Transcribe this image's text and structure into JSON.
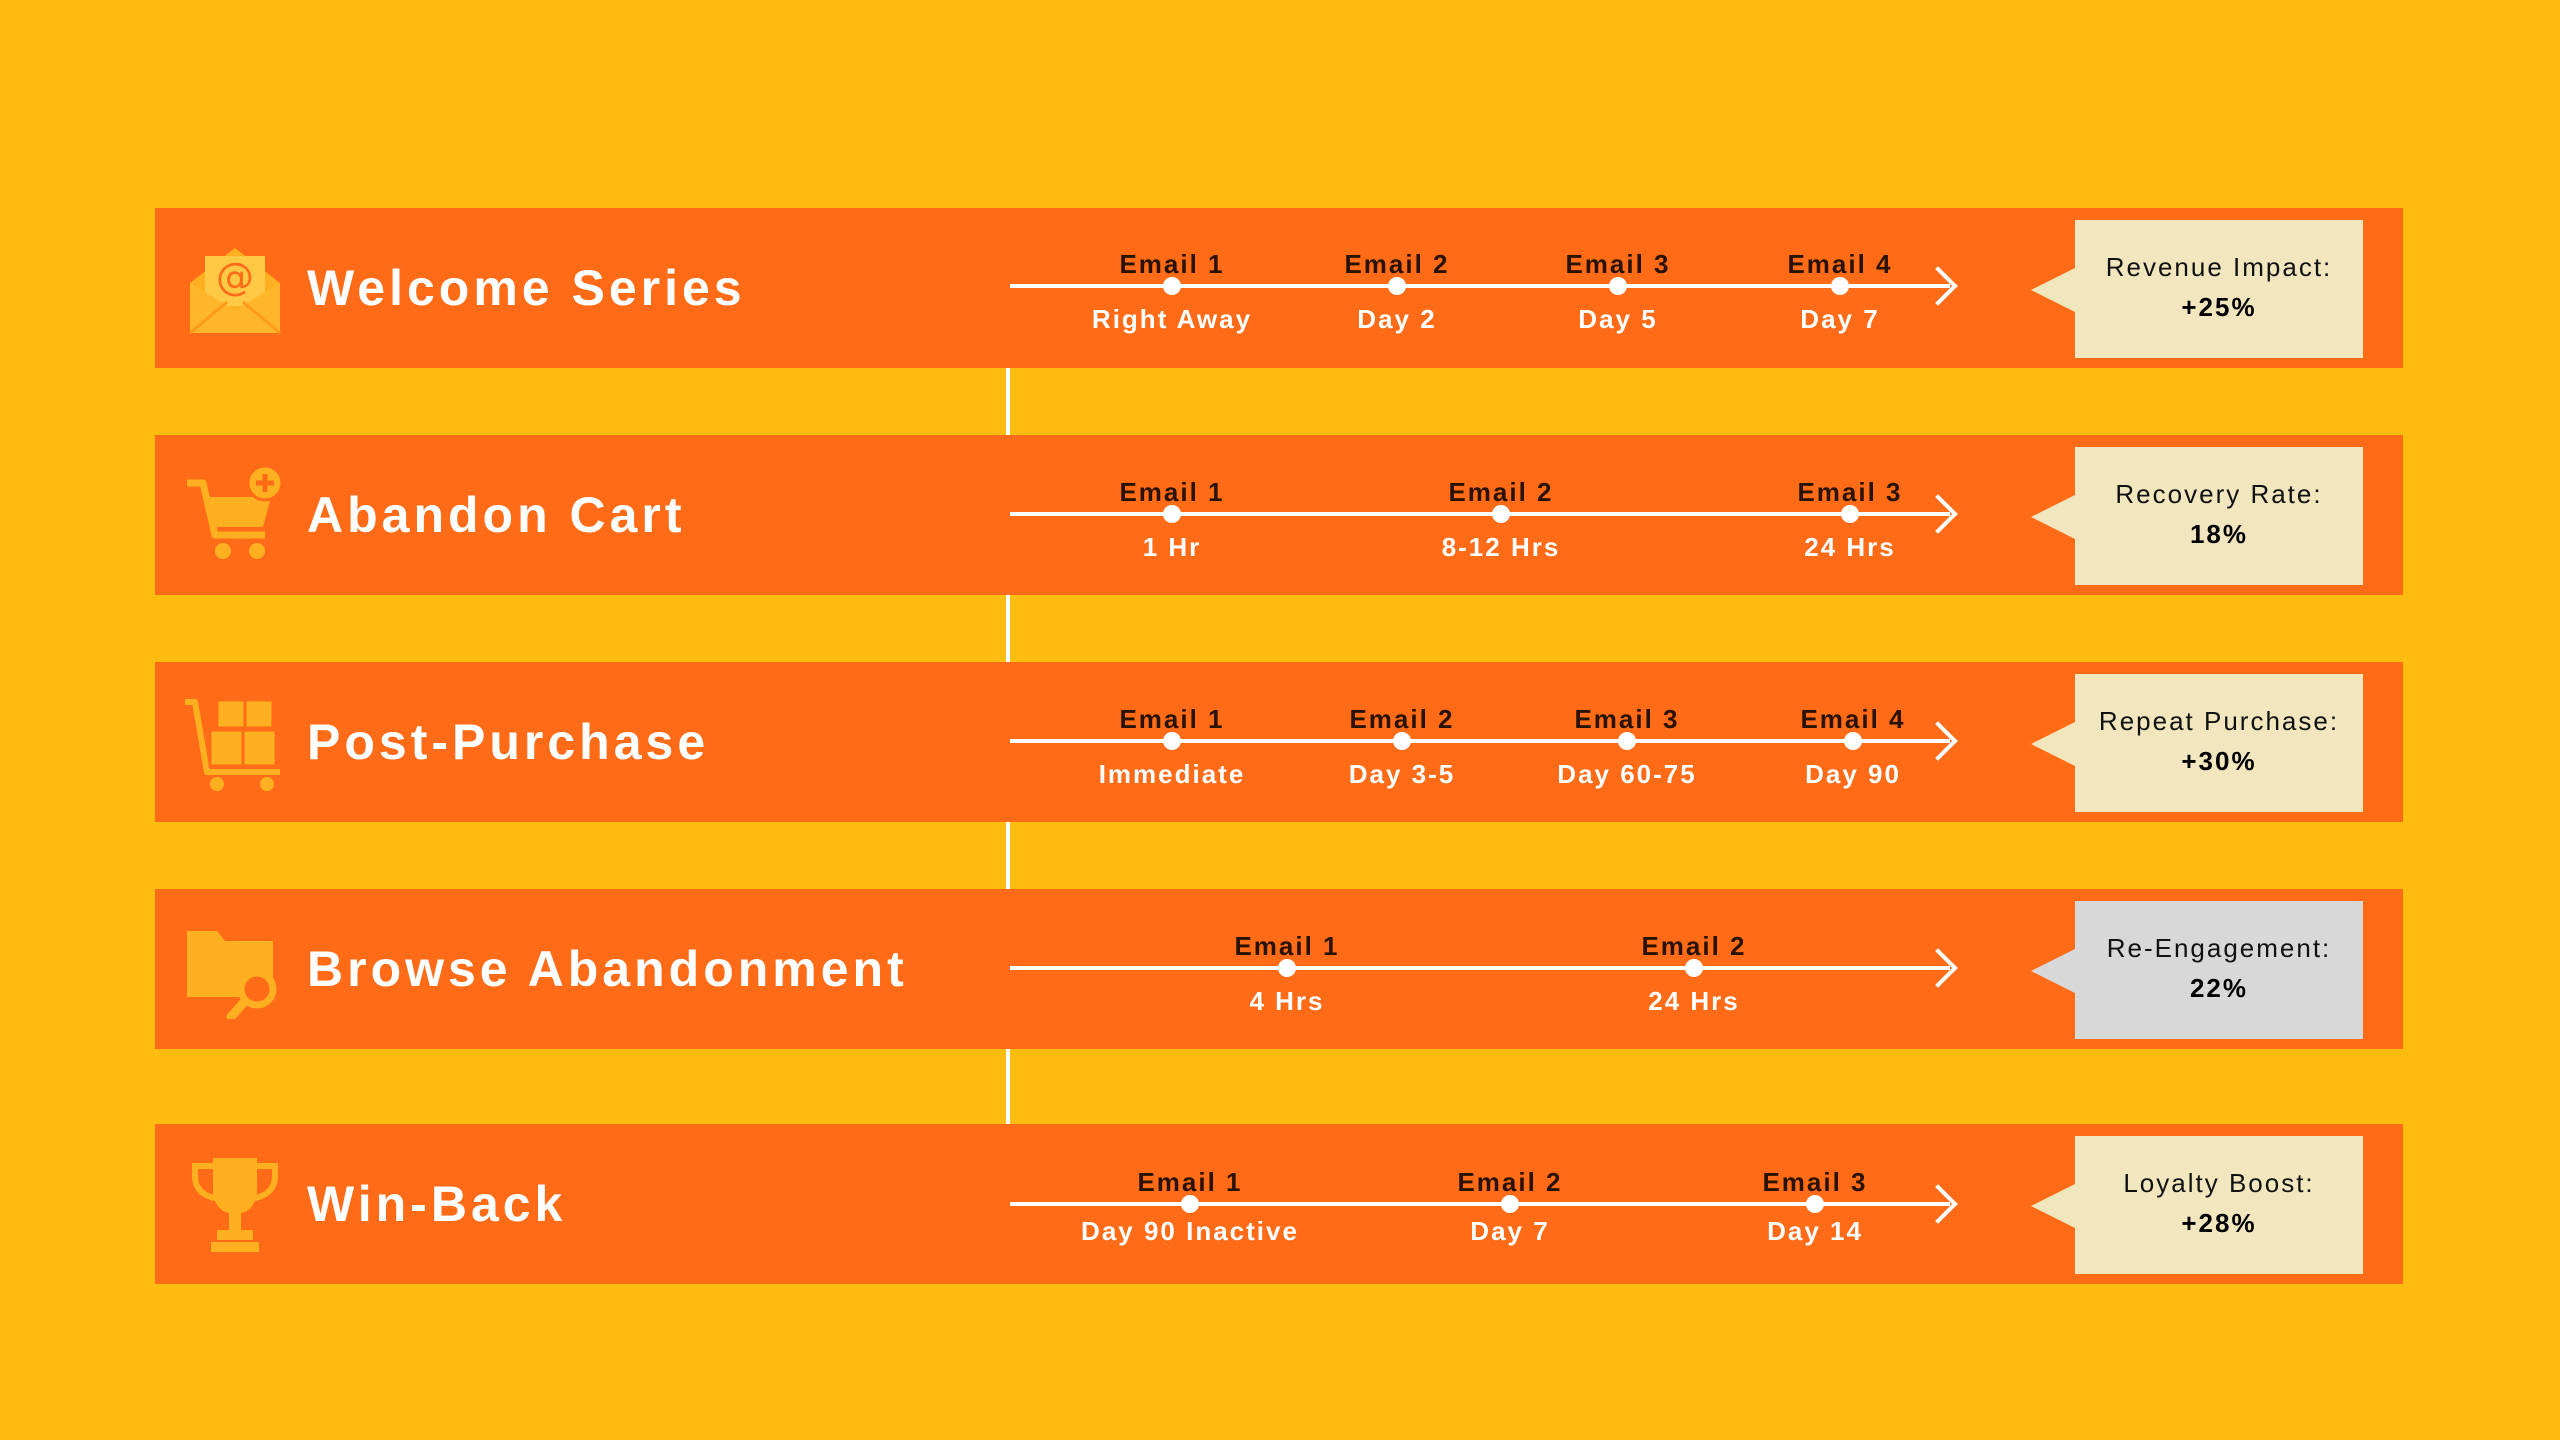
{
  "colors": {
    "background": "#FFBC10",
    "band": "#FF6B17",
    "metric_box": "#F2E6BF",
    "metric_box_alt": "#D8D8D8",
    "line": "#FFFFFF"
  },
  "flows": [
    {
      "title": "Welcome Series",
      "icon": "envelope-icon",
      "metric_label": "Revenue Impact:",
      "metric_value": "+25%",
      "steps": [
        {
          "email": "Email 1",
          "time": "Right Away"
        },
        {
          "email": "Email 2",
          "time": "Day 2"
        },
        {
          "email": "Email 3",
          "time": "Day 5"
        },
        {
          "email": "Email 4",
          "time": "Day 7"
        }
      ]
    },
    {
      "title": "Abandon Cart",
      "icon": "cart-add-icon",
      "metric_label": "Recovery Rate:",
      "metric_value": "18%",
      "steps": [
        {
          "email": "Email 1",
          "time": "1 Hr"
        },
        {
          "email": "Email 2",
          "time": "8-12 Hrs"
        },
        {
          "email": "Email 3",
          "time": "24 Hrs"
        }
      ]
    },
    {
      "title": "Post-Purchase",
      "icon": "boxes-cart-icon",
      "metric_label": "Repeat Purchase:",
      "metric_value": "+30%",
      "steps": [
        {
          "email": "Email 1",
          "time": "Immediate"
        },
        {
          "email": "Email 2",
          "time": "Day 3-5"
        },
        {
          "email": "Email 3",
          "time": "Day 60-75"
        },
        {
          "email": "Email 4",
          "time": "Day 90"
        }
      ]
    },
    {
      "title": "Browse Abandonment",
      "icon": "folder-search-icon",
      "metric_label": "Re-Engagement:",
      "metric_value": "22%",
      "steps": [
        {
          "email": "Email 1",
          "time": "4 Hrs"
        },
        {
          "email": "Email 2",
          "time": "24 Hrs"
        }
      ]
    },
    {
      "title": "Win-Back",
      "icon": "trophy-icon",
      "metric_label": "Loyalty Boost:",
      "metric_value": "+28%",
      "steps": [
        {
          "email": "Email 1",
          "time": "Day 90 Inactive"
        },
        {
          "email": "Email 2",
          "time": "Day 7"
        },
        {
          "email": "Email 3",
          "time": "Day 14"
        }
      ]
    }
  ]
}
